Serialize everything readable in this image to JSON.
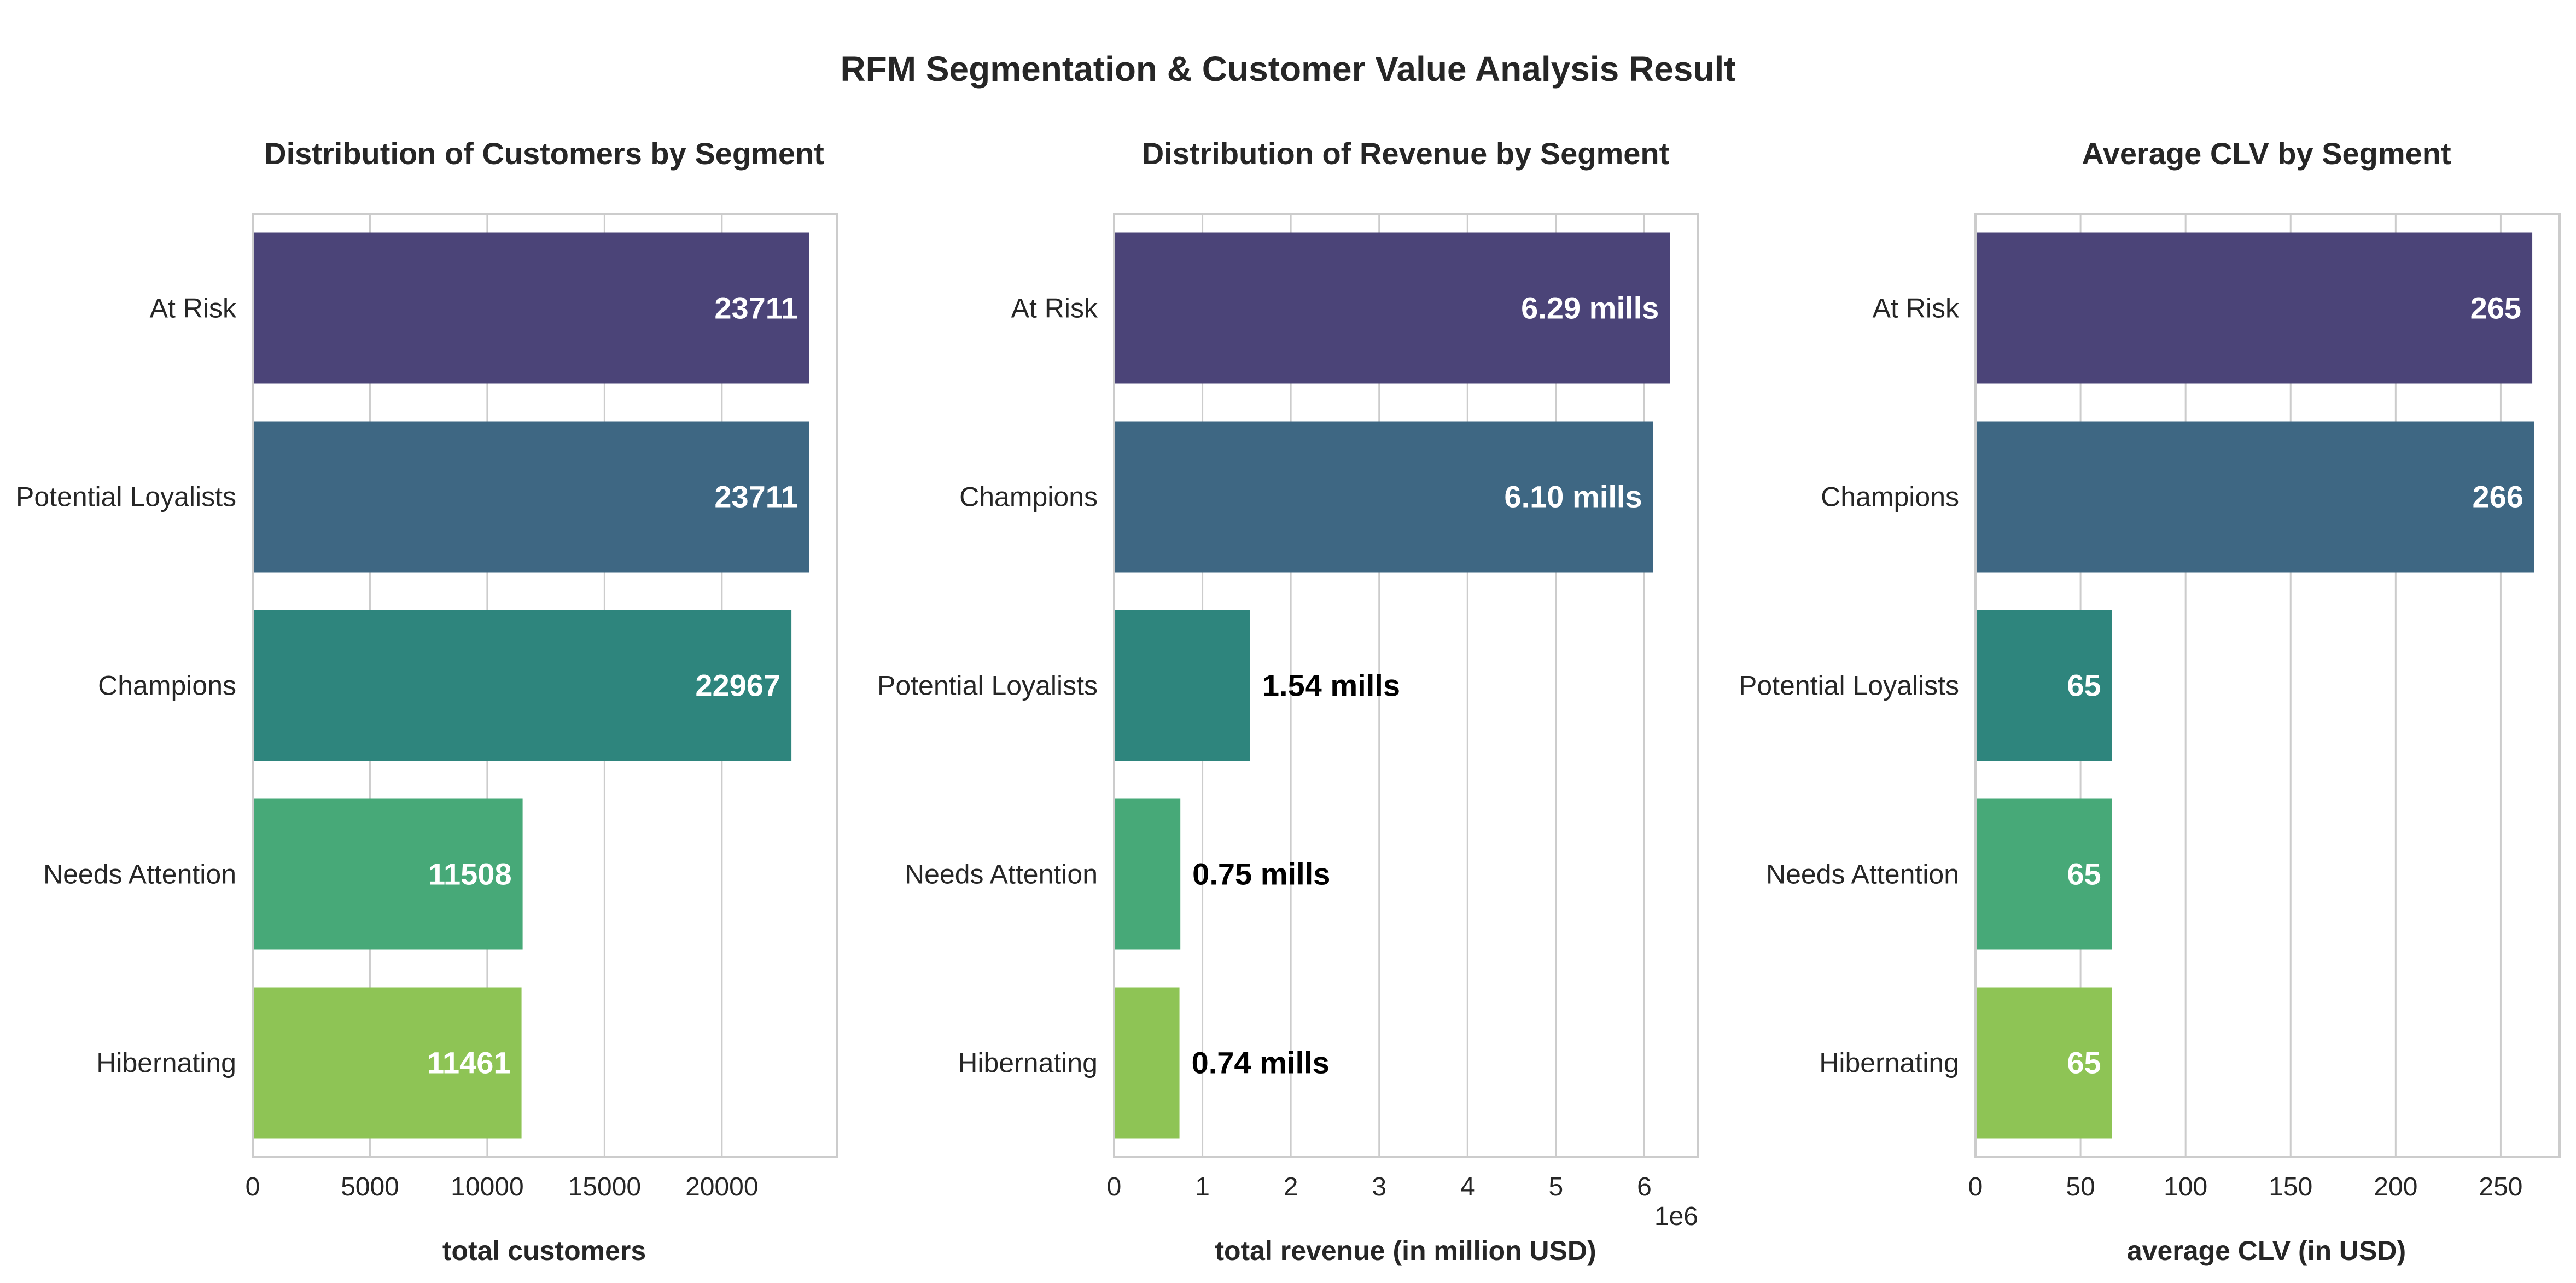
{
  "figure": {
    "title": "RFM Segmentation & Customer Value Analysis Result"
  },
  "colors": {
    "c0": "#4b4478",
    "c1": "#3e6783",
    "c2": "#2e857d",
    "c3": "#47a978",
    "c4": "#8ec455"
  },
  "chart_data": [
    {
      "type": "bar",
      "orientation": "horizontal",
      "title": "Distribution of Customers by Segment",
      "xlabel": "total customers",
      "ylabel": "",
      "categories": [
        "At Risk",
        "Potential Loyalists",
        "Champions",
        "Needs Attention",
        "Hibernating"
      ],
      "values": [
        23711,
        23711,
        22967,
        11508,
        11461
      ],
      "data_labels": [
        "23711",
        "23711",
        "22967",
        "11508",
        "11461"
      ],
      "label_position": [
        "inside",
        "inside",
        "inside",
        "inside",
        "inside"
      ],
      "xlim": [
        0,
        24900
      ],
      "xticks": [
        0,
        5000,
        10000,
        15000,
        20000
      ],
      "xtick_labels": [
        "0",
        "5000",
        "10000",
        "15000",
        "20000"
      ],
      "offset_text": "",
      "grid": true
    },
    {
      "type": "bar",
      "orientation": "horizontal",
      "title": "Distribution of Revenue by Segment",
      "xlabel": "total revenue (in million USD)",
      "ylabel": "",
      "categories": [
        "At Risk",
        "Champions",
        "Potential Loyalists",
        "Needs Attention",
        "Hibernating"
      ],
      "values": [
        6290000,
        6100000,
        1540000,
        750000,
        740000
      ],
      "data_labels": [
        "6.29 mills",
        "6.10 mills",
        "1.54 mills",
        "0.75 mills",
        "0.74 mills"
      ],
      "label_position": [
        "inside",
        "inside",
        "outside",
        "outside",
        "outside"
      ],
      "xlim": [
        0,
        6610000
      ],
      "xticks": [
        0,
        1000000,
        2000000,
        3000000,
        4000000,
        5000000,
        6000000
      ],
      "xtick_labels": [
        "0",
        "1",
        "2",
        "3",
        "4",
        "5",
        "6"
      ],
      "offset_text": "1e6",
      "grid": true
    },
    {
      "type": "bar",
      "orientation": "horizontal",
      "title": "Average CLV by Segment",
      "xlabel": "average CLV (in USD)",
      "ylabel": "",
      "categories": [
        "At Risk",
        "Champions",
        "Potential Loyalists",
        "Needs Attention",
        "Hibernating"
      ],
      "values": [
        265,
        266,
        65,
        65,
        65
      ],
      "data_labels": [
        "265",
        "266",
        "65",
        "65",
        "65"
      ],
      "label_position": [
        "inside",
        "inside",
        "inside",
        "inside",
        "inside"
      ],
      "xlim": [
        0,
        278
      ],
      "xticks": [
        0,
        50,
        100,
        150,
        200,
        250
      ],
      "xtick_labels": [
        "0",
        "50",
        "100",
        "150",
        "200",
        "250"
      ],
      "offset_text": "",
      "grid": true
    }
  ]
}
